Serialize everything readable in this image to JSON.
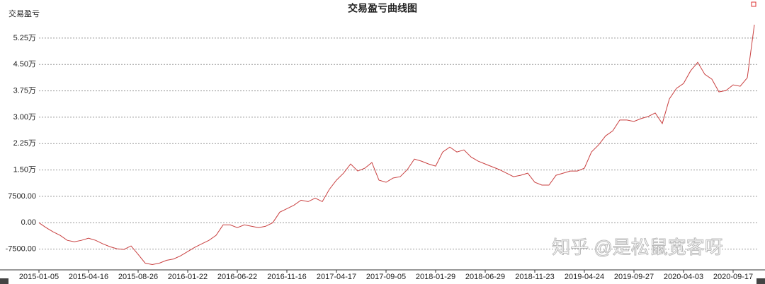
{
  "chart_data": {
    "type": "line",
    "title": "交易盈亏曲线图",
    "y_label": "交易盈亏",
    "annotation": "知乎 @是松鼠宽客呀",
    "categories": [
      "2015-01-05",
      null,
      null,
      null,
      null,
      null,
      null,
      "2015-04-16",
      null,
      null,
      null,
      null,
      null,
      null,
      "2015-08-26",
      null,
      null,
      null,
      null,
      null,
      null,
      "2016-01-22",
      null,
      null,
      null,
      null,
      null,
      null,
      "2016-06-22",
      null,
      null,
      null,
      null,
      null,
      null,
      "2016-11-16",
      null,
      null,
      null,
      null,
      null,
      null,
      "2017-04-17",
      null,
      null,
      null,
      null,
      null,
      null,
      "2017-09-05",
      null,
      null,
      null,
      null,
      null,
      null,
      "2018-01-29",
      null,
      null,
      null,
      null,
      null,
      null,
      "2018-06-29",
      null,
      null,
      null,
      null,
      null,
      null,
      "2018-11-23",
      null,
      null,
      null,
      null,
      null,
      null,
      "2019-04-24",
      null,
      null,
      null,
      null,
      null,
      null,
      "2019-09-27",
      null,
      null,
      null,
      null,
      null,
      null,
      "2020-04-03",
      null,
      null,
      null,
      null,
      null,
      null,
      "2020-09-17",
      null,
      null,
      null
    ],
    "series": [
      {
        "color": "#c94040",
        "values": [
          0,
          -1400,
          -2600,
          -3600,
          -5000,
          -5400,
          -5000,
          -4400,
          -5000,
          -6000,
          -6800,
          -7400,
          -7600,
          -6600,
          -9000,
          -11500,
          -11900,
          -11500,
          -10700,
          -10300,
          -9400,
          -8200,
          -7000,
          -6000,
          -5000,
          -3600,
          -600,
          -600,
          -1400,
          -600,
          -1000,
          -1400,
          -1000,
          0,
          3000,
          4000,
          5000,
          6400,
          6000,
          7000,
          6000,
          9500,
          12100,
          14100,
          16700,
          14700,
          15500,
          17100,
          12100,
          11500,
          12700,
          13100,
          15100,
          18100,
          17500,
          16700,
          16100,
          20100,
          21500,
          20100,
          20700,
          18700,
          17500,
          16700,
          15900,
          15100,
          14100,
          13100,
          13500,
          14100,
          11500,
          10700,
          10700,
          13500,
          14100,
          14700,
          14700,
          15500,
          20100,
          22100,
          24700,
          26100,
          29200,
          29200,
          28800,
          29600,
          30200,
          31200,
          28200,
          35200,
          38200,
          39600,
          43200,
          45600,
          42200,
          40800,
          37200,
          37600,
          39200,
          38800,
          41200,
          56300
        ]
      }
    ],
    "ylim": [
      -13000,
      57700
    ],
    "yticks": [
      {
        "value": -7500,
        "label": "-7500.00"
      },
      {
        "value": 0,
        "label": "0.00"
      },
      {
        "value": 7500,
        "label": "7500.00"
      },
      {
        "value": 15000,
        "label": "1.50万"
      },
      {
        "value": 22500,
        "label": "2.25万"
      },
      {
        "value": 30000,
        "label": "3.00万"
      },
      {
        "value": 37500,
        "label": "3.75万"
      },
      {
        "value": 45000,
        "label": "4.50万"
      },
      {
        "value": 52500,
        "label": "5.25万"
      }
    ],
    "grid": true
  }
}
